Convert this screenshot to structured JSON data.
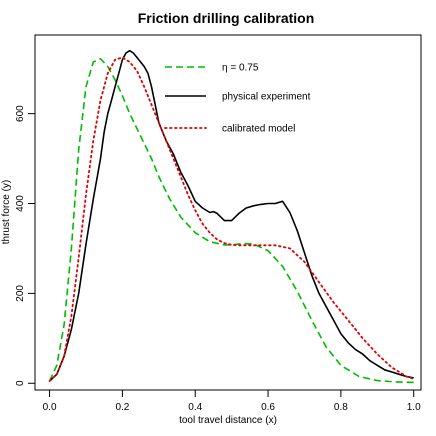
{
  "chart_data": {
    "type": "line",
    "title": "Friction drilling calibration",
    "xlabel": "tool travel distance (x)",
    "ylabel": "thrust force (y)",
    "xlim": [
      -0.04,
      1.02
    ],
    "ylim": [
      -15,
      775
    ],
    "xticks": [
      0.0,
      0.2,
      0.4,
      0.6,
      0.8,
      1.0
    ],
    "xtick_labels": [
      "0.0",
      "0.2",
      "0.4",
      "0.6",
      "0.8",
      "1.0"
    ],
    "yticks": [
      0,
      200,
      400,
      600
    ],
    "ytick_labels": [
      "0",
      "200",
      "400",
      "600"
    ],
    "grid": false,
    "legend_position": "top-right",
    "series": [
      {
        "name": "η = 0.75",
        "color": "#00bb00",
        "style": "dashed",
        "x": [
          0.0,
          0.02,
          0.04,
          0.06,
          0.08,
          0.1,
          0.12,
          0.14,
          0.16,
          0.18,
          0.2,
          0.22,
          0.25,
          0.28,
          0.3,
          0.33,
          0.36,
          0.4,
          0.44,
          0.48,
          0.5,
          0.53,
          0.56,
          0.6,
          0.64,
          0.68,
          0.72,
          0.76,
          0.8,
          0.85,
          0.9,
          0.95,
          1.0
        ],
        "y": [
          5,
          40,
          130,
          300,
          520,
          660,
          715,
          722,
          705,
          675,
          640,
          600,
          550,
          500,
          460,
          410,
          370,
          335,
          315,
          308,
          308,
          311,
          310,
          295,
          260,
          205,
          140,
          80,
          40,
          15,
          6,
          3,
          2
        ]
      },
      {
        "name": "physical experiment",
        "color": "#000000",
        "style": "solid",
        "x": [
          0.0,
          0.02,
          0.04,
          0.06,
          0.08,
          0.1,
          0.12,
          0.14,
          0.15,
          0.16,
          0.17,
          0.18,
          0.19,
          0.2,
          0.21,
          0.22,
          0.23,
          0.24,
          0.25,
          0.26,
          0.27,
          0.28,
          0.29,
          0.3,
          0.32,
          0.34,
          0.36,
          0.38,
          0.4,
          0.42,
          0.44,
          0.45,
          0.46,
          0.48,
          0.5,
          0.52,
          0.54,
          0.56,
          0.58,
          0.6,
          0.62,
          0.64,
          0.66,
          0.68,
          0.7,
          0.72,
          0.74,
          0.76,
          0.78,
          0.8,
          0.82,
          0.84,
          0.86,
          0.88,
          0.9,
          0.92,
          0.94,
          0.96,
          0.98,
          1.0
        ],
        "y": [
          5,
          20,
          60,
          120,
          200,
          310,
          410,
          500,
          560,
          600,
          630,
          660,
          690,
          720,
          735,
          740,
          735,
          725,
          715,
          705,
          690,
          660,
          620,
          580,
          540,
          510,
          470,
          440,
          405,
          390,
          380,
          382,
          378,
          362,
          362,
          378,
          390,
          395,
          398,
          400,
          400,
          405,
          380,
          340,
          290,
          240,
          200,
          170,
          140,
          110,
          90,
          75,
          65,
          50,
          40,
          30,
          25,
          20,
          15,
          12
        ]
      },
      {
        "name": "calibrated model",
        "color": "#dd0000",
        "style": "dotted",
        "x": [
          0.0,
          0.02,
          0.04,
          0.06,
          0.08,
          0.1,
          0.12,
          0.14,
          0.16,
          0.18,
          0.2,
          0.22,
          0.24,
          0.26,
          0.28,
          0.3,
          0.32,
          0.34,
          0.36,
          0.38,
          0.4,
          0.42,
          0.44,
          0.46,
          0.48,
          0.5,
          0.52,
          0.55,
          0.58,
          0.62,
          0.66,
          0.7,
          0.74,
          0.78,
          0.82,
          0.86,
          0.9,
          0.94,
          0.98,
          1.0
        ],
        "y": [
          5,
          20,
          60,
          150,
          280,
          420,
          540,
          630,
          690,
          720,
          725,
          715,
          695,
          660,
          620,
          580,
          540,
          500,
          460,
          420,
          385,
          355,
          335,
          320,
          312,
          308,
          307,
          307,
          307,
          307,
          300,
          270,
          225,
          180,
          140,
          100,
          65,
          35,
          15,
          10
        ]
      }
    ]
  }
}
